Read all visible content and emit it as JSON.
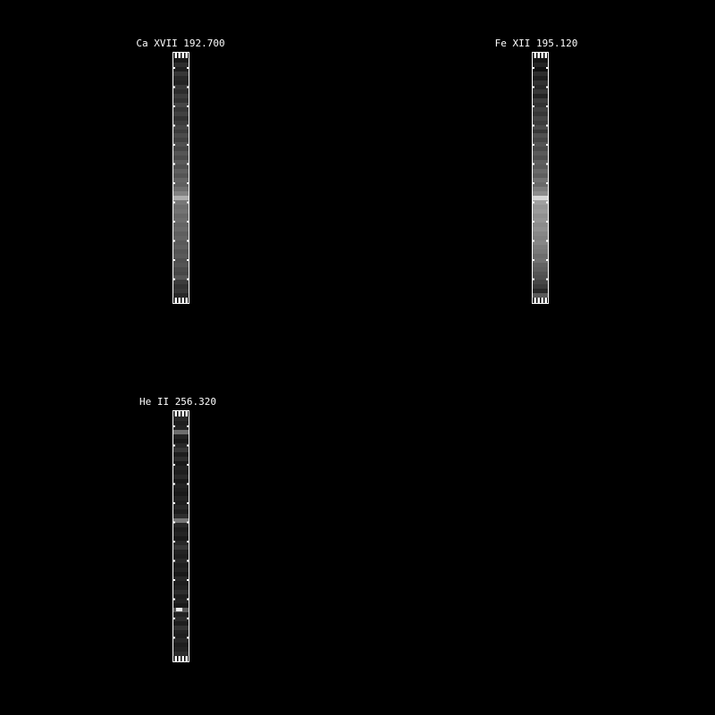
{
  "window": {
    "background": "#000000",
    "text_color": "#ffffff"
  },
  "panels": [
    {
      "title": "Ca XVII 192.700"
    },
    {
      "title": "Fe XII 195.120"
    },
    {
      "title": "He II 256.320"
    }
  ],
  "chart_data": [
    {
      "type": "heatmap",
      "title": "Ca XVII 192.700",
      "line_id": "Ca XVII",
      "wavelength_angstrom": 192.7,
      "orientation": "vertical-strip",
      "value_range": [
        0,
        255
      ],
      "grid": false,
      "values": [
        25,
        45,
        30,
        55,
        40,
        35,
        55,
        45,
        60,
        50,
        70,
        55,
        65,
        50,
        60,
        70,
        60,
        75,
        65,
        80,
        70,
        85,
        75,
        90,
        80,
        95,
        85,
        100,
        95,
        110,
        130,
        175,
        120,
        110,
        115,
        105,
        110,
        100,
        105,
        95,
        100,
        90,
        95,
        85,
        90,
        80,
        85,
        75,
        70,
        85,
        60,
        50,
        55,
        40
      ],
      "bright_spot": null
    },
    {
      "type": "heatmap",
      "title": "Fe XII 195.120",
      "line_id": "Fe XII",
      "wavelength_angstrom": 195.12,
      "orientation": "vertical-strip",
      "value_range": [
        0,
        255
      ],
      "grid": false,
      "values": [
        20,
        35,
        15,
        45,
        30,
        50,
        40,
        55,
        35,
        60,
        50,
        65,
        55,
        70,
        60,
        75,
        55,
        80,
        70,
        85,
        75,
        90,
        80,
        95,
        90,
        105,
        95,
        115,
        105,
        125,
        140,
        215,
        160,
        150,
        155,
        145,
        150,
        140,
        145,
        135,
        130,
        135,
        125,
        120,
        110,
        115,
        100,
        95,
        85,
        80,
        70,
        60,
        40,
        90
      ],
      "bright_spot": null
    },
    {
      "type": "heatmap",
      "title": "He II 256.320",
      "line_id": "He II",
      "wavelength_angstrom": 256.32,
      "orientation": "vertical-strip",
      "value_range": [
        0,
        255
      ],
      "grid": false,
      "values": [
        40,
        30,
        35,
        110,
        35,
        25,
        40,
        55,
        30,
        45,
        25,
        35,
        30,
        40,
        25,
        35,
        30,
        25,
        35,
        30,
        40,
        30,
        45,
        120,
        40,
        30,
        35,
        25,
        40,
        55,
        35,
        30,
        40,
        30,
        35,
        25,
        40,
        30,
        35,
        45,
        30,
        35,
        25,
        90,
        35,
        45,
        30,
        50,
        35,
        30,
        40,
        30,
        35,
        45
      ],
      "bright_spot": {
        "band": 43,
        "gray": 235
      }
    }
  ]
}
